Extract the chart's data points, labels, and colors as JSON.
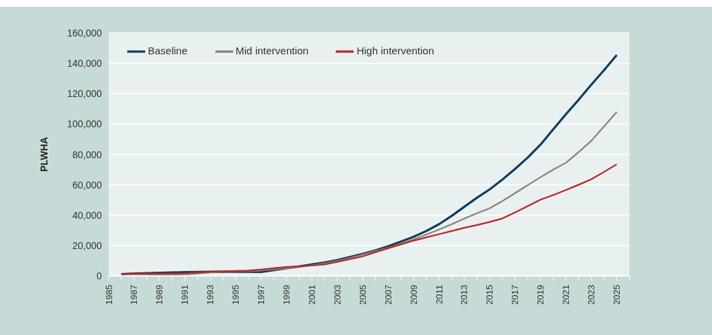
{
  "chart_data": {
    "type": "line",
    "ylabel": "PLWHA",
    "x": [
      1986,
      1987,
      1988,
      1989,
      1990,
      1991,
      1992,
      1993,
      1994,
      1995,
      1996,
      1997,
      1998,
      1999,
      2000,
      2001,
      2002,
      2003,
      2004,
      2005,
      2006,
      2007,
      2008,
      2009,
      2010,
      2011,
      2012,
      2013,
      2014,
      2015,
      2016,
      2017,
      2018,
      2019,
      2020,
      2021,
      2022,
      2023,
      2024,
      2025
    ],
    "series": [
      {
        "name": "Baseline",
        "color": "#0e3d5e",
        "values": [
          1000,
          1500,
          1800,
          2000,
          2200,
          2500,
          2600,
          2700,
          2700,
          2700,
          2600,
          2500,
          3800,
          5000,
          6200,
          7500,
          8800,
          10400,
          12400,
          14500,
          16800,
          19500,
          22500,
          25700,
          29500,
          34000,
          39500,
          45500,
          51500,
          57000,
          63500,
          70500,
          78000,
          86500,
          96500,
          106500,
          116000,
          126000,
          135500,
          145500
        ]
      },
      {
        "name": "Mid intervention",
        "color": "#8c7f79",
        "values": [
          1200,
          1000,
          800,
          700,
          700,
          800,
          1500,
          2200,
          2800,
          3000,
          3200,
          3500,
          4200,
          5000,
          6000,
          7000,
          8200,
          9800,
          11800,
          14000,
          16300,
          18600,
          21200,
          24000,
          27200,
          30500,
          34000,
          37700,
          41200,
          44500,
          49300,
          54500,
          59800,
          65000,
          70000,
          74500,
          81500,
          89000,
          98500,
          108000
        ]
      },
      {
        "name": "High intervention",
        "color": "#c0201e",
        "values": [
          1400,
          1500,
          1500,
          1500,
          1500,
          1700,
          2200,
          2700,
          3000,
          3200,
          3500,
          4200,
          5000,
          5800,
          6300,
          6800,
          7500,
          9200,
          11000,
          12800,
          15500,
          18200,
          20700,
          23200,
          25300,
          27400,
          29500,
          31700,
          33500,
          35500,
          37800,
          41800,
          46000,
          50200,
          53300,
          56500,
          60000,
          63700,
          68500,
          73500
        ]
      }
    ],
    "xlim": [
      1985,
      2026
    ],
    "xticks": [
      1985,
      {
        "value": 1986,
        "label": null
      },
      1987,
      {
        "value": 1988,
        "label": null
      },
      1989,
      {
        "value": 1990,
        "label": null
      },
      1991,
      {
        "value": 1992,
        "label": null
      },
      1993,
      {
        "value": 1994,
        "label": null
      },
      1995,
      {
        "value": 1996,
        "label": null
      },
      1997,
      {
        "value": 1998,
        "label": null
      },
      1999,
      {
        "value": 2000,
        "label": null
      },
      2001,
      {
        "value": 2002,
        "label": null
      },
      2003,
      {
        "value": 2004,
        "label": null
      },
      2005,
      {
        "value": 2006,
        "label": null
      },
      2007,
      {
        "value": 2008,
        "label": null
      },
      2009,
      {
        "value": 2010,
        "label": null
      },
      2011,
      {
        "value": 2012,
        "label": null
      },
      2013,
      {
        "value": 2014,
        "label": null
      },
      2015,
      {
        "value": 2016,
        "label": null
      },
      2017,
      {
        "value": 2018,
        "label": null
      },
      2019,
      {
        "value": 2020,
        "label": null
      },
      2021,
      {
        "value": 2022,
        "label": null
      },
      2023,
      {
        "value": 2024,
        "label": null
      },
      2025,
      {
        "value": 2026,
        "label": null
      }
    ],
    "ylim": [
      0,
      160000
    ],
    "yticks": [
      0,
      {
        "value": 20000,
        "label": "20,000"
      },
      {
        "value": 40000,
        "label": "40,000"
      },
      {
        "value": 60000,
        "label": "60,000"
      },
      {
        "value": 80000,
        "label": "80,000"
      },
      {
        "value": 100000,
        "label": "100,000"
      },
      {
        "value": 120000,
        "label": "120,000"
      },
      {
        "value": 140000,
        "label": "140,000"
      },
      {
        "value": 160000,
        "label": "160,000"
      }
    ],
    "grid": "y",
    "legend": "top left",
    "marker": "none",
    "line_style": "solid"
  }
}
